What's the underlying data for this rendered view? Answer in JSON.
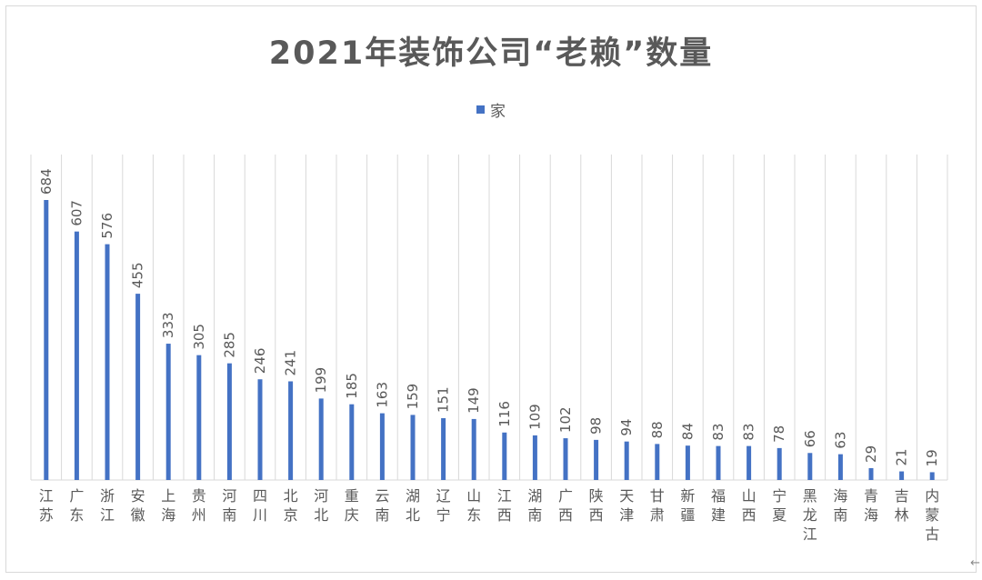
{
  "chart_data": {
    "type": "bar",
    "title": "2021年装饰公司“老赖”数量",
    "legend": {
      "position": "top",
      "entries": [
        "家"
      ]
    },
    "series": [
      {
        "name": "家",
        "color": "#4472c4",
        "values": [
          684,
          607,
          576,
          455,
          333,
          305,
          285,
          246,
          241,
          199,
          185,
          163,
          159,
          151,
          149,
          116,
          109,
          102,
          98,
          94,
          88,
          84,
          83,
          83,
          78,
          66,
          63,
          29,
          21,
          19
        ]
      }
    ],
    "categories": [
      "江苏",
      "广东",
      "浙江",
      "安徽",
      "上海",
      "贵州",
      "河南",
      "四川",
      "北京",
      "河北",
      "重庆",
      "云南",
      "湖北",
      "辽宁",
      "山东",
      "江西",
      "湖南",
      "广西",
      "陕西",
      "天津",
      "甘肃",
      "新疆",
      "福建",
      "山西",
      "宁夏",
      "黑龙江",
      "海南",
      "青海",
      "吉林",
      "内蒙古"
    ],
    "ylim": [
      0,
      690
    ],
    "grid": {
      "vertical": true,
      "horizontal": false
    },
    "data_labels": true
  },
  "footer": {
    "arrow": "←"
  }
}
